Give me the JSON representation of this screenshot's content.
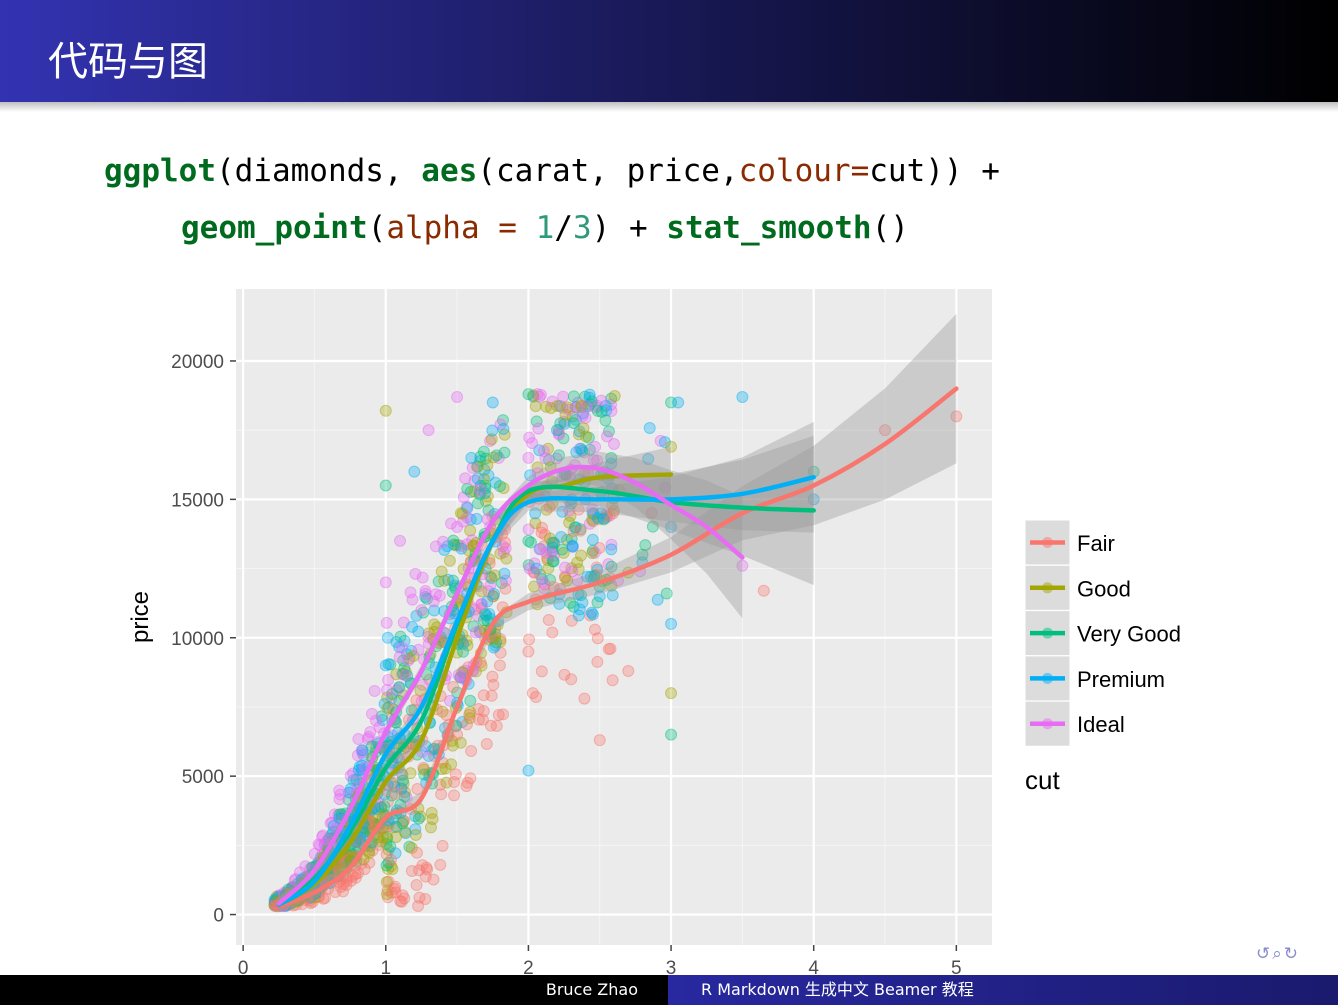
{
  "slide": {
    "title": "代码与图",
    "code": {
      "line1": [
        {
          "text": "ggplot",
          "style": "fn"
        },
        {
          "text": "(diamonds, ",
          "style": "plain"
        },
        {
          "text": "aes",
          "style": "fn"
        },
        {
          "text": "(carat, price,",
          "style": "plain"
        },
        {
          "text": "colour=",
          "style": "arg"
        },
        {
          "text": "cut)) +",
          "style": "plain"
        }
      ],
      "line2": [
        {
          "text": "geom_point",
          "style": "fn"
        },
        {
          "text": "(",
          "style": "plain"
        },
        {
          "text": "alpha = ",
          "style": "arg"
        },
        {
          "text": "1",
          "style": "num"
        },
        {
          "text": "/",
          "style": "plain"
        },
        {
          "text": "3",
          "style": "num"
        },
        {
          "text": ") + ",
          "style": "plain"
        },
        {
          "text": "stat_smooth",
          "style": "fn"
        },
        {
          "text": "()",
          "style": "plain"
        }
      ]
    },
    "footer": {
      "author": "Bruce Zhao",
      "deck_title": "R Markdown 生成中文 Beamer 教程"
    },
    "nav_icons": [
      "loop-icon",
      "search-icon",
      "return-icon"
    ]
  },
  "chart_data": {
    "type": "scatter",
    "title": "",
    "xlabel": "",
    "ylabel": "price",
    "xlim": [
      -0.05,
      5.25
    ],
    "ylim": [
      -1100,
      22600
    ],
    "x_ticks": [
      0,
      1,
      2,
      3,
      4,
      5
    ],
    "y_ticks": [
      0,
      5000,
      10000,
      15000,
      20000
    ],
    "grid": true,
    "legend": {
      "title": "cut",
      "position": "right"
    },
    "series": [
      {
        "name": "Fair",
        "color": "#F8766D",
        "smooth": [
          [
            0.25,
            300
          ],
          [
            0.5,
            800
          ],
          [
            0.75,
            1700
          ],
          [
            1.0,
            3500
          ],
          [
            1.25,
            4200
          ],
          [
            1.5,
            7500
          ],
          [
            1.75,
            10500
          ],
          [
            2.0,
            11300
          ],
          [
            2.5,
            12000
          ],
          [
            3.0,
            13000
          ],
          [
            3.5,
            14500
          ],
          [
            4.0,
            15500
          ],
          [
            4.5,
            17000
          ],
          [
            5.0,
            19000
          ]
        ]
      },
      {
        "name": "Good",
        "color": "#A3A500",
        "smooth": [
          [
            0.25,
            350
          ],
          [
            0.5,
            1100
          ],
          [
            0.75,
            2600
          ],
          [
            1.0,
            4800
          ],
          [
            1.25,
            6300
          ],
          [
            1.5,
            10000
          ],
          [
            1.75,
            13500
          ],
          [
            2.0,
            15200
          ],
          [
            2.25,
            15500
          ],
          [
            2.5,
            15800
          ],
          [
            3.0,
            15900
          ]
        ]
      },
      {
        "name": "Very Good",
        "color": "#00BF7D",
        "smooth": [
          [
            0.25,
            400
          ],
          [
            0.5,
            1300
          ],
          [
            0.75,
            3000
          ],
          [
            1.0,
            5300
          ],
          [
            1.25,
            7000
          ],
          [
            1.5,
            10500
          ],
          [
            1.75,
            13500
          ],
          [
            2.0,
            15300
          ],
          [
            2.5,
            15300
          ],
          [
            3.0,
            14900
          ],
          [
            3.5,
            14700
          ],
          [
            4.0,
            14600
          ]
        ]
      },
      {
        "name": "Premium",
        "color": "#00B0F6",
        "smooth": [
          [
            0.25,
            350
          ],
          [
            0.5,
            1200
          ],
          [
            0.75,
            3200
          ],
          [
            1.0,
            5800
          ],
          [
            1.25,
            7500
          ],
          [
            1.5,
            10600
          ],
          [
            1.75,
            13500
          ],
          [
            2.0,
            14900
          ],
          [
            2.5,
            15000
          ],
          [
            3.0,
            15000
          ],
          [
            3.5,
            15200
          ],
          [
            4.0,
            15800
          ]
        ]
      },
      {
        "name": "Ideal",
        "color": "#E76BF3",
        "smooth": [
          [
            0.25,
            400
          ],
          [
            0.5,
            1600
          ],
          [
            0.75,
            3800
          ],
          [
            1.0,
            6600
          ],
          [
            1.25,
            8800
          ],
          [
            1.5,
            11600
          ],
          [
            1.75,
            14200
          ],
          [
            2.0,
            15500
          ],
          [
            2.25,
            16100
          ],
          [
            2.5,
            16100
          ],
          [
            2.75,
            15600
          ],
          [
            3.0,
            14800
          ],
          [
            3.25,
            14000
          ],
          [
            3.5,
            12900
          ]
        ]
      }
    ],
    "points_alpha": 0.33,
    "scatter_samples": [
      [
        0.3,
        400,
        "Fair"
      ],
      [
        0.35,
        550,
        "Good"
      ],
      [
        0.4,
        800,
        "Ideal"
      ],
      [
        0.5,
        1500,
        "Premium"
      ],
      [
        0.55,
        1800,
        "Ideal"
      ],
      [
        0.6,
        2300,
        "Very Good"
      ],
      [
        0.7,
        2600,
        "Ideal"
      ],
      [
        0.75,
        3100,
        "Good"
      ],
      [
        0.8,
        3400,
        "Ideal"
      ],
      [
        0.9,
        3800,
        "Premium"
      ],
      [
        1.0,
        4500,
        "Fair"
      ],
      [
        1.0,
        6000,
        "Ideal"
      ],
      [
        1.0,
        9000,
        "Premium"
      ],
      [
        1.0,
        12000,
        "Ideal"
      ],
      [
        1.0,
        15500,
        "Very Good"
      ],
      [
        1.0,
        18200,
        "Good"
      ],
      [
        1.1,
        13500,
        "Ideal"
      ],
      [
        1.2,
        16000,
        "Premium"
      ],
      [
        1.25,
        11000,
        "Ideal"
      ],
      [
        1.3,
        17500,
        "Ideal"
      ],
      [
        1.5,
        6500,
        "Fair"
      ],
      [
        1.5,
        10000,
        "Good"
      ],
      [
        1.5,
        14000,
        "Ideal"
      ],
      [
        1.5,
        18700,
        "Ideal"
      ],
      [
        1.6,
        16500,
        "Premium"
      ],
      [
        1.7,
        12500,
        "Very Good"
      ],
      [
        1.75,
        18500,
        "Premium"
      ],
      [
        1.8,
        9000,
        "Fair"
      ],
      [
        2.0,
        5200,
        "Premium"
      ],
      [
        2.0,
        9500,
        "Fair"
      ],
      [
        2.0,
        13500,
        "Very Good"
      ],
      [
        2.0,
        16500,
        "Ideal"
      ],
      [
        2.0,
        18800,
        "Very Good"
      ],
      [
        2.1,
        12000,
        "Ideal"
      ],
      [
        2.2,
        17500,
        "Premium"
      ],
      [
        2.3,
        8500,
        "Fair"
      ],
      [
        2.4,
        15000,
        "Premium"
      ],
      [
        2.5,
        6300,
        "Fair"
      ],
      [
        2.5,
        11500,
        "Premium"
      ],
      [
        2.6,
        17000,
        "Ideal"
      ],
      [
        2.7,
        8800,
        "Fair"
      ],
      [
        2.8,
        13000,
        "Very Good"
      ],
      [
        3.0,
        6500,
        "Very Good"
      ],
      [
        3.0,
        8000,
        "Good"
      ],
      [
        3.0,
        10500,
        "Premium"
      ],
      [
        3.0,
        14000,
        "Premium"
      ],
      [
        3.0,
        16900,
        "Good"
      ],
      [
        3.0,
        18500,
        "Very Good"
      ],
      [
        3.05,
        18500,
        "Premium"
      ],
      [
        3.5,
        12600,
        "Ideal"
      ],
      [
        3.5,
        18700,
        "Premium"
      ],
      [
        3.65,
        11700,
        "Fair"
      ],
      [
        4.0,
        15000,
        "Premium"
      ],
      [
        4.0,
        16000,
        "Very Good"
      ],
      [
        4.5,
        17500,
        "Fair"
      ],
      [
        5.0,
        18000,
        "Fair"
      ]
    ]
  }
}
